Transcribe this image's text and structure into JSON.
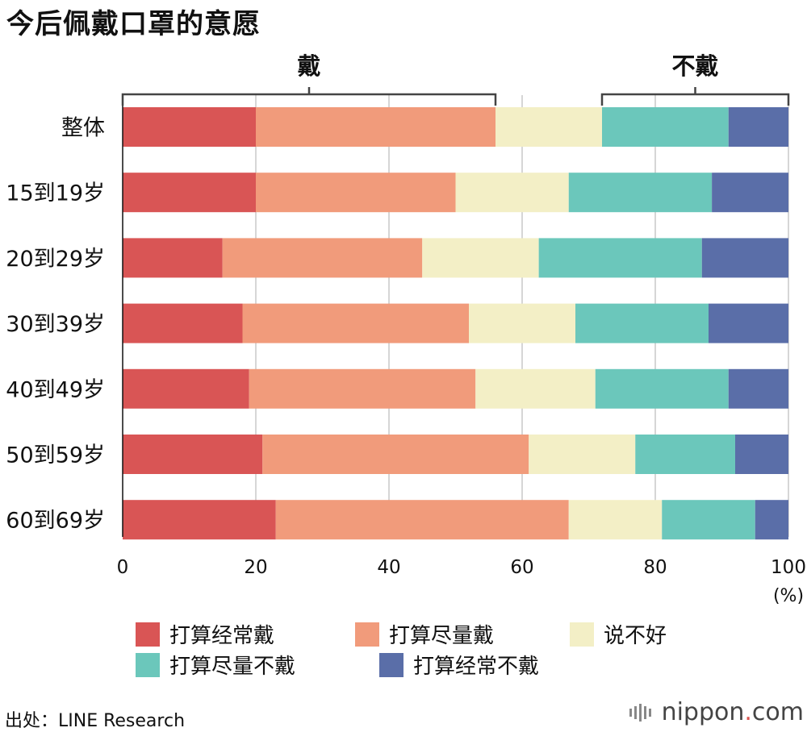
{
  "title": "今后佩戴口罩的意愿",
  "source": "出处：LINE Research",
  "brand": {
    "name": "nippon",
    "dot": ".",
    "tld": "com"
  },
  "chart_data": {
    "type": "bar",
    "orientation": "horizontal-stacked-100",
    "categories": [
      "整体",
      "15到19岁",
      "20到29岁",
      "30到39岁",
      "40到49岁",
      "50到59岁",
      "60到69岁"
    ],
    "series": [
      {
        "name": "打算经常戴",
        "color": "#d95555",
        "values": [
          20,
          20,
          15,
          18,
          19,
          21,
          23
        ]
      },
      {
        "name": "打算尽量戴",
        "color": "#f19b7b",
        "values": [
          36,
          30,
          30,
          34,
          34,
          40,
          44
        ]
      },
      {
        "name": "说不好",
        "color": "#f3efc6",
        "values": [
          16,
          17,
          17.5,
          16,
          18,
          16,
          14
        ]
      },
      {
        "name": "打算尽量不戴",
        "color": "#6bc7bb",
        "values": [
          19,
          21.5,
          24.5,
          20,
          20,
          15,
          14
        ]
      },
      {
        "name": "打算经常不戴",
        "color": "#5a6ea8",
        "values": [
          9,
          11.5,
          13,
          12,
          9,
          8,
          5
        ]
      }
    ],
    "x_ticks": [
      "0",
      "20",
      "40",
      "60",
      "80",
      "100"
    ],
    "xlim": [
      0,
      100
    ],
    "unit_label": "(%)",
    "grid": true,
    "annotations": [
      {
        "label": "戴",
        "from": 0,
        "to": 56
      },
      {
        "label": "不戴",
        "from": 72,
        "to": 100
      }
    ]
  }
}
